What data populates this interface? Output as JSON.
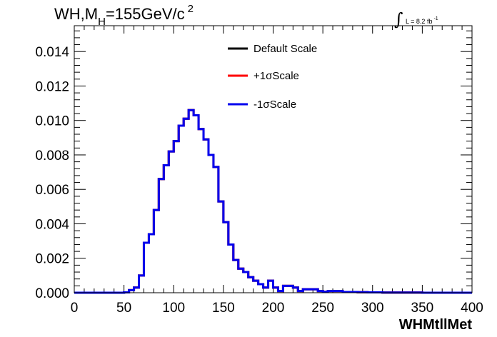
{
  "chart_data": {
    "type": "line",
    "title_main": "WH,M",
    "title_sub": "H",
    "title_value": "=155GeV/c",
    "title_sup": "2",
    "lumi_label": "L = 8.2 fb",
    "lumi_sup": "-1",
    "xlabel": "WHMtllMet",
    "ylabel": "",
    "xlim": [
      0,
      400
    ],
    "ylim": [
      0,
      0.0155
    ],
    "x_ticks": [
      "0",
      "50",
      "100",
      "150",
      "200",
      "250",
      "300",
      "350",
      "400"
    ],
    "y_ticks": [
      "0.000",
      "0.002",
      "0.004",
      "0.006",
      "0.008",
      "0.010",
      "0.012",
      "0.014"
    ],
    "bin_edges": [
      0,
      10,
      20,
      30,
      40,
      50,
      55,
      60,
      65,
      70,
      75,
      80,
      85,
      90,
      95,
      100,
      105,
      110,
      115,
      120,
      125,
      130,
      135,
      140,
      145,
      150,
      155,
      160,
      165,
      170,
      175,
      180,
      185,
      190,
      195,
      200,
      205,
      210,
      215,
      220,
      225,
      230,
      235,
      240,
      245,
      250,
      255,
      260,
      265,
      270,
      275,
      280,
      285,
      290,
      295,
      300,
      305,
      310,
      320,
      330,
      340,
      350,
      360,
      370,
      380,
      390,
      400
    ],
    "series": [
      {
        "name": "Default Scale",
        "color": "#000000",
        "values": [
          0,
          0,
          0,
          0,
          0,
          2e-05,
          0.00015,
          0.0003,
          0.001,
          0.0029,
          0.0034,
          0.0048,
          0.0066,
          0.0074,
          0.0082,
          0.0088,
          0.0097,
          0.0101,
          0.0106,
          0.0103,
          0.0095,
          0.0089,
          0.008,
          0.0073,
          0.0053,
          0.0041,
          0.0028,
          0.0019,
          0.0014,
          0.0012,
          0.0009,
          0.0007,
          0.0005,
          0.0003,
          0.0007,
          0.0003,
          0.0001,
          0.0004,
          0.0004,
          0.0003,
          0.0001,
          0.0002,
          0.0002,
          0.0002,
          0.0001,
          5e-05,
          0.0001,
          0.0001,
          0.0001,
          4e-05,
          4e-05,
          4e-05,
          3e-05,
          3e-05,
          2e-05,
          2e-05,
          2e-05,
          1e-05,
          1e-05,
          1e-05,
          1e-05,
          0,
          0,
          0,
          0,
          0
        ]
      },
      {
        "name": "+1σScale",
        "color": "#ff0000",
        "values": [
          0,
          0,
          0,
          0,
          0,
          2e-05,
          0.00015,
          0.0003,
          0.001,
          0.0029,
          0.0034,
          0.0048,
          0.0066,
          0.0074,
          0.0082,
          0.0088,
          0.0097,
          0.0101,
          0.0106,
          0.0103,
          0.0095,
          0.0089,
          0.008,
          0.0073,
          0.0053,
          0.0041,
          0.0028,
          0.0019,
          0.0014,
          0.0012,
          0.0009,
          0.0007,
          0.0005,
          0.0003,
          0.0007,
          0.0003,
          0.0001,
          0.0004,
          0.0004,
          0.0003,
          0.0001,
          0.0002,
          0.0002,
          0.0002,
          0.0001,
          5e-05,
          0.0001,
          0.0001,
          0.0001,
          4e-05,
          4e-05,
          4e-05,
          3e-05,
          3e-05,
          2e-05,
          2e-05,
          2e-05,
          1e-05,
          1e-05,
          1e-05,
          1e-05,
          0,
          0,
          0,
          0,
          0
        ]
      },
      {
        "name": "-1σScale",
        "color": "#0000ee",
        "values": [
          0,
          0,
          0,
          0,
          0,
          2e-05,
          0.00015,
          0.0003,
          0.001,
          0.0029,
          0.0034,
          0.0048,
          0.0066,
          0.0074,
          0.0082,
          0.0088,
          0.0097,
          0.0101,
          0.0106,
          0.0103,
          0.0095,
          0.0089,
          0.008,
          0.0073,
          0.0053,
          0.0041,
          0.0028,
          0.0019,
          0.0014,
          0.0012,
          0.0009,
          0.0007,
          0.0005,
          0.0003,
          0.0007,
          0.0003,
          0.0001,
          0.0004,
          0.0004,
          0.0003,
          0.0001,
          0.0002,
          0.0002,
          0.0002,
          0.0001,
          5e-05,
          0.0001,
          0.0001,
          0.0001,
          4e-05,
          4e-05,
          4e-05,
          3e-05,
          3e-05,
          2e-05,
          2e-05,
          2e-05,
          1e-05,
          1e-05,
          1e-05,
          1e-05,
          0,
          0,
          0,
          0,
          0
        ]
      }
    ],
    "grid": false,
    "legend_position": "top-center"
  }
}
